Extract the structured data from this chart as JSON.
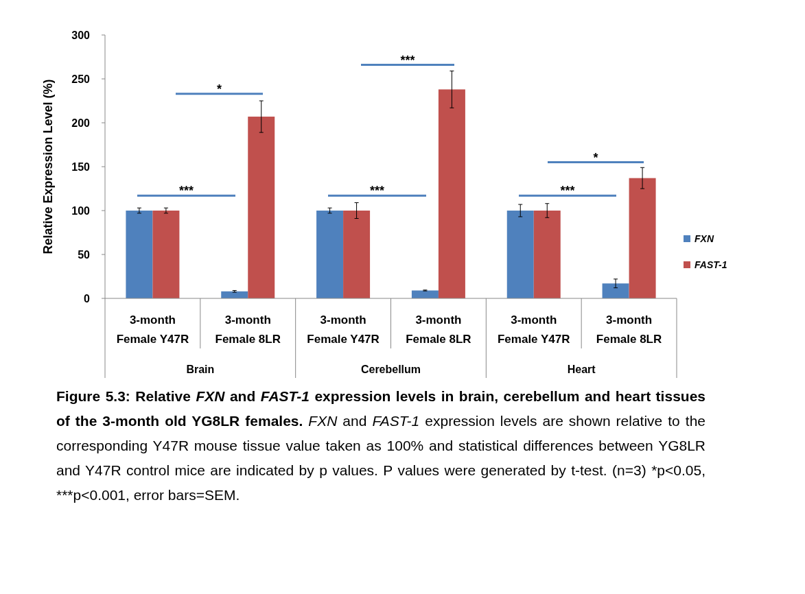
{
  "chart_data": {
    "type": "bar",
    "ylabel": "Relative Expression Level (%)",
    "categories": [
      "3-month Female Y47R",
      "3-month Female 8LR",
      "3-month Female Y47R",
      "3-month Female 8LR",
      "3-month Female Y47R",
      "3-month Female 8LR"
    ],
    "series": [
      {
        "name": "FXN",
        "color": "#4f81bd",
        "values": [
          100,
          8,
          100,
          9,
          100,
          17
        ],
        "errors": [
          3,
          1,
          3,
          0.5,
          7,
          5
        ]
      },
      {
        "name": "FAST-1",
        "color": "#c0504d",
        "values": [
          100,
          207,
          100,
          238,
          100,
          137
        ],
        "errors": [
          3,
          18,
          9,
          21,
          8,
          12
        ]
      }
    ],
    "ylim": [
      0,
      300
    ],
    "yticks": [
      0,
      50,
      100,
      150,
      200,
      250,
      300
    ],
    "grid": false,
    "legend": "right",
    "annotations": [
      "***",
      "*",
      "***",
      "***",
      "***",
      "*",
      "Brain",
      "Cerebellum",
      "Heart",
      "Figure 5.3: Relative FXN and FAST-1 expression levels in brain, cerebellum and heart tissues of the 3-month old YG8LR females.",
      "FXN and FAST-1 expression levels are shown relative to the corresponding Y47R mouse tissue value taken as 100% and statistical differences between YG8LR and Y47R control mice are indicated by p values. P values were generated by t-test. (n=3) *p<0.05, ***p<0.001, error bars=SEM."
    ]
  }
}
